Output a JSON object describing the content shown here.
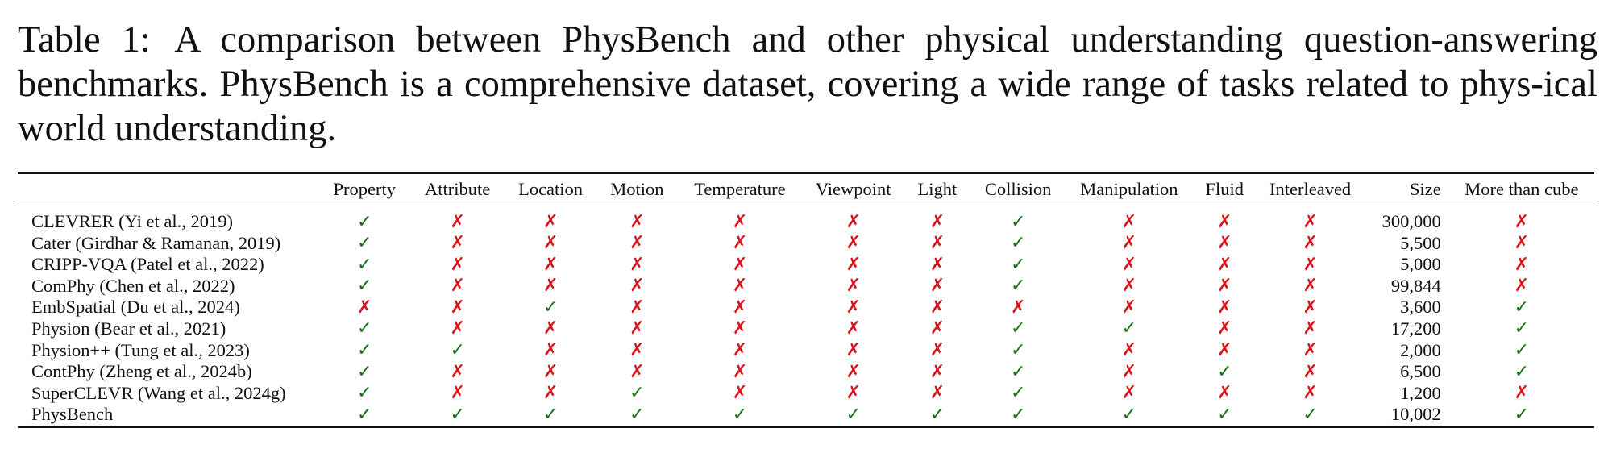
{
  "caption": {
    "label": "Table 1:",
    "text": "A comparison between PhysBench and other physical understanding question-answering benchmarks. PhysBench is a comprehensive dataset, covering a wide range of tasks related to phys-ical world understanding."
  },
  "marks": {
    "yes": "✓",
    "no": "✗",
    "yes_color": "#177317",
    "no_color": "#d7141a"
  },
  "table": {
    "columns": [
      "",
      "Property",
      "Attribute",
      "Location",
      "Motion",
      "Temperature",
      "Viewpoint",
      "Light",
      "Collision",
      "Manipulation",
      "Fluid",
      "Interleaved",
      "Size",
      "More than cube"
    ],
    "rows": [
      {
        "name": "CLEVRER (Yi et al., 2019)",
        "flags": [
          true,
          false,
          false,
          false,
          false,
          false,
          false,
          true,
          false,
          false,
          false
        ],
        "size": "300,000",
        "more_than_cube": false
      },
      {
        "name": "Cater (Girdhar & Ramanan, 2019)",
        "flags": [
          true,
          false,
          false,
          false,
          false,
          false,
          false,
          true,
          false,
          false,
          false
        ],
        "size": "5,500",
        "more_than_cube": false
      },
      {
        "name": "CRIPP-VQA (Patel et al., 2022)",
        "flags": [
          true,
          false,
          false,
          false,
          false,
          false,
          false,
          true,
          false,
          false,
          false
        ],
        "size": "5,000",
        "more_than_cube": false
      },
      {
        "name": "ComPhy (Chen et al., 2022)",
        "flags": [
          true,
          false,
          false,
          false,
          false,
          false,
          false,
          true,
          false,
          false,
          false
        ],
        "size": "99,844",
        "more_than_cube": false
      },
      {
        "name": "EmbSpatial (Du et al., 2024)",
        "flags": [
          false,
          false,
          true,
          false,
          false,
          false,
          false,
          false,
          false,
          false,
          false
        ],
        "size": "3,600",
        "more_than_cube": true
      },
      {
        "name": "Physion (Bear et al., 2021)",
        "flags": [
          true,
          false,
          false,
          false,
          false,
          false,
          false,
          true,
          true,
          false,
          false
        ],
        "size": "17,200",
        "more_than_cube": true
      },
      {
        "name": "Physion++ (Tung et al., 2023)",
        "flags": [
          true,
          true,
          false,
          false,
          false,
          false,
          false,
          true,
          false,
          false,
          false
        ],
        "size": "2,000",
        "more_than_cube": true
      },
      {
        "name": "ContPhy (Zheng et al., 2024b)",
        "flags": [
          true,
          false,
          false,
          false,
          false,
          false,
          false,
          true,
          false,
          true,
          false
        ],
        "size": "6,500",
        "more_than_cube": true
      },
      {
        "name": "SuperCLEVR (Wang et al., 2024g)",
        "flags": [
          true,
          false,
          false,
          true,
          false,
          false,
          false,
          true,
          false,
          false,
          false
        ],
        "size": "1,200",
        "more_than_cube": false
      },
      {
        "name": "PhysBench",
        "flags": [
          true,
          true,
          true,
          true,
          true,
          true,
          true,
          true,
          true,
          true,
          true
        ],
        "size": "10,002",
        "more_than_cube": true
      }
    ]
  }
}
